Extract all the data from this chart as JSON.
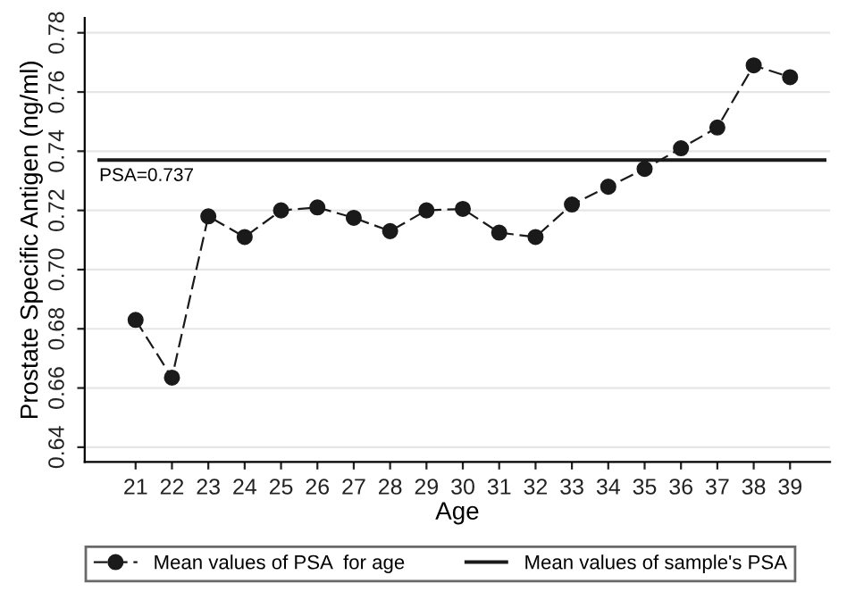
{
  "chart_data": {
    "type": "line",
    "xlabel": "Age",
    "ylabel": "Prostate Specific Antigen (ng/ml)",
    "xlim": [
      19.6,
      40.1
    ],
    "xticks": [
      21,
      22,
      23,
      24,
      25,
      26,
      27,
      28,
      29,
      30,
      31,
      32,
      33,
      34,
      35,
      36,
      37,
      38,
      39
    ],
    "ylim": [
      0.635,
      0.785
    ],
    "yticks": [
      {
        "value": 0.64,
        "label": "0.64"
      },
      {
        "value": 0.66,
        "label": "0.66"
      },
      {
        "value": 0.68,
        "label": "0.68"
      },
      {
        "value": 0.7,
        "label": "0.70"
      },
      {
        "value": 0.72,
        "label": "0.72"
      },
      {
        "value": 0.74,
        "label": "0.74"
      },
      {
        "value": 0.76,
        "label": "0.76"
      },
      {
        "value": 0.78,
        "label": "0.78"
      }
    ],
    "grid": "y",
    "legend": "bottom",
    "series": [
      {
        "name": "Mean values of PSA  for age",
        "color": "#1a1a1a",
        "marker": "circle",
        "line_style": "dashed",
        "x": [
          21,
          22,
          23,
          24,
          25,
          26,
          27,
          28,
          29,
          30,
          31,
          32,
          33,
          34,
          35,
          36,
          37,
          38,
          39
        ],
        "values": [
          0.683,
          0.6635,
          0.718,
          0.711,
          0.72,
          0.721,
          0.7175,
          0.713,
          0.72,
          0.7205,
          0.7125,
          0.711,
          0.722,
          0.728,
          0.734,
          0.741,
          0.748,
          0.769,
          0.765
        ]
      },
      {
        "name": "Mean values of sample's PSA",
        "color": "#1a1a1a",
        "marker": "none",
        "line_style": "solid",
        "x": [
          19.95,
          40.0
        ],
        "values": [
          0.737,
          0.737
        ]
      }
    ],
    "annotations": [
      {
        "text": "PSA=0.737",
        "x": 20.0,
        "y": 0.737
      }
    ]
  }
}
